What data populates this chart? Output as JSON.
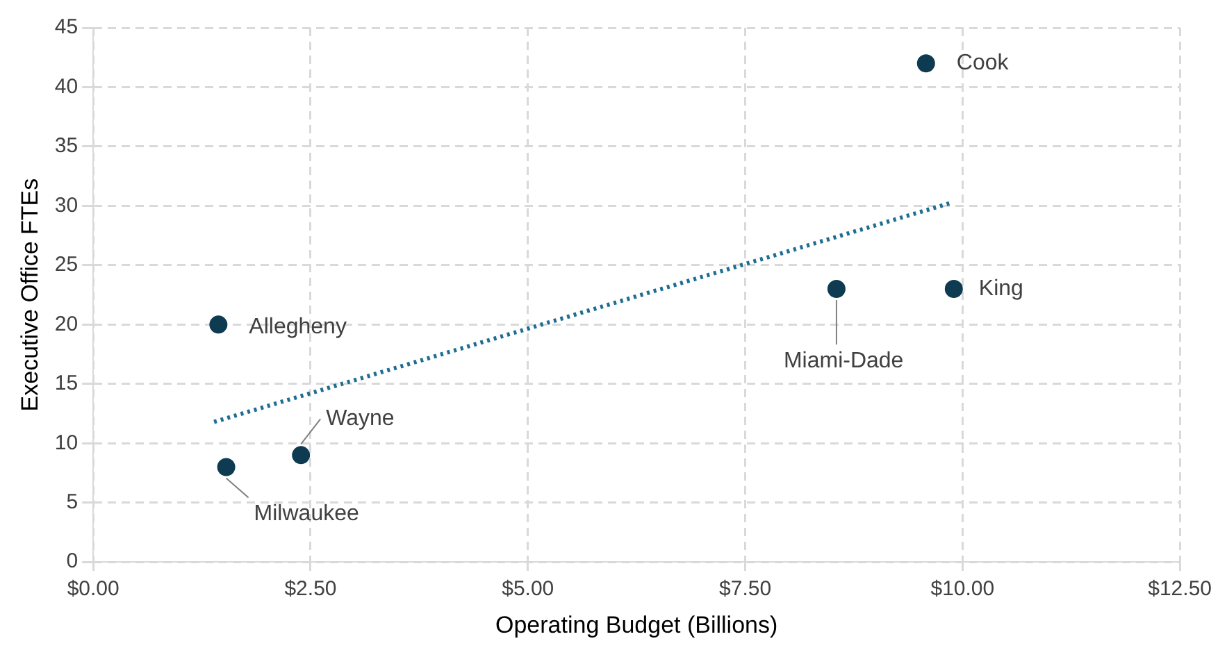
{
  "chart_data": {
    "type": "scatter",
    "xlabel": "Operating Budget (Billions)",
    "ylabel": "Executive Office FTEs",
    "x": [
      9.58,
      9.9,
      8.55,
      1.44,
      1.53,
      2.39
    ],
    "series": [
      {
        "type": "scatter",
        "color": "#0e3b52",
        "values": [
          42,
          23,
          23,
          20,
          8,
          9
        ]
      },
      {
        "type": "line",
        "color": "#1f6d92",
        "x": [
          1.39,
          9.89
        ],
        "values": [
          11.8,
          30.3
        ],
        "line_style": "dotted",
        "marker": "none"
      }
    ],
    "marker": "circle",
    "xlim": [
      0,
      12.5
    ],
    "xticks": [
      {
        "value": 0,
        "label": "$0.00"
      },
      {
        "value": 2.5,
        "label": "$2.50"
      },
      {
        "value": 5,
        "label": "$5.00"
      },
      {
        "value": 7.5,
        "label": "$7.50"
      },
      {
        "value": 10,
        "label": "$10.00"
      },
      {
        "value": 12.5,
        "label": "$12.50"
      }
    ],
    "ylim": [
      0,
      45
    ],
    "yticks": [
      0,
      5,
      10,
      15,
      20,
      25,
      30,
      35,
      40,
      45
    ],
    "grid": true,
    "legend": false,
    "annotations": [
      {
        "text": "Cook",
        "x": 9.58,
        "y": 42
      },
      {
        "text": "King",
        "x": 9.9,
        "y": 23
      },
      {
        "text": "Miami-Dade",
        "x": 8.55,
        "y": 23
      },
      {
        "text": "Allegheny",
        "x": 1.44,
        "y": 20
      },
      {
        "text": "Milwaukee",
        "x": 1.53,
        "y": 8
      },
      {
        "text": "Wayne",
        "x": 2.39,
        "y": 9
      }
    ]
  }
}
